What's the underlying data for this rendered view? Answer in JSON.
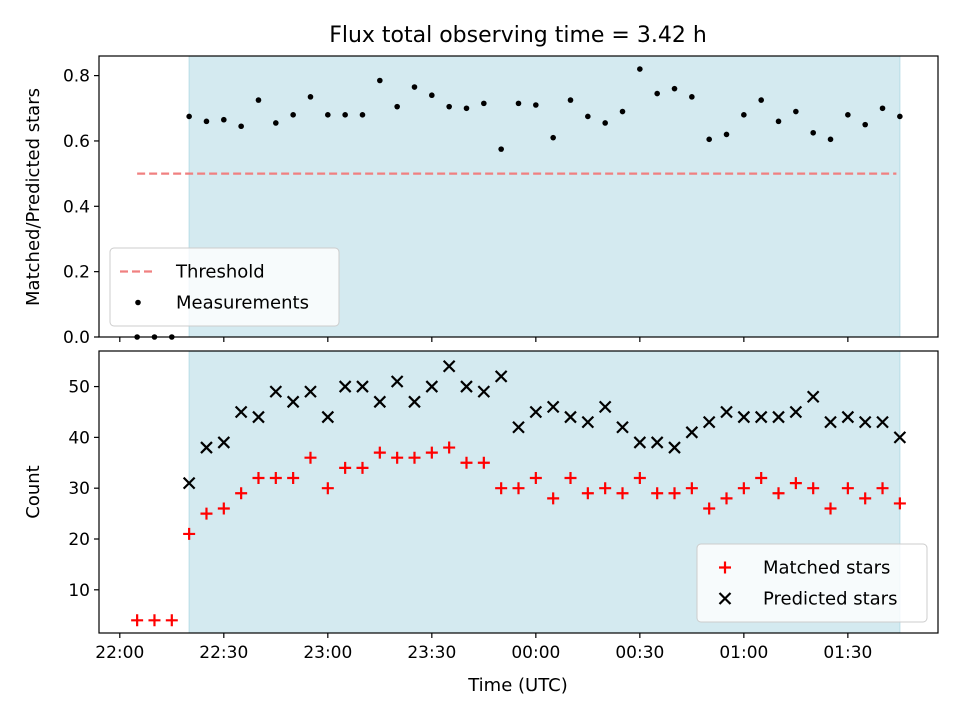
{
  "chart_data": {
    "type": "scatter",
    "title": "Flux total observing time = 3.42 h",
    "xlabel": "Time (UTC)",
    "x_ticks": [
      "22:00",
      "22:30",
      "23:00",
      "23:30",
      "00:00",
      "00:30",
      "01:00",
      "01:30"
    ],
    "x_tick_minutes": [
      0,
      30,
      60,
      90,
      120,
      150,
      180,
      210
    ],
    "xlim_minutes": [
      -6,
      236
    ],
    "highlight_span_minutes": [
      20,
      225
    ],
    "highlight_color": "#d4eaf0",
    "panels": [
      {
        "ylabel": "Matched/Predicted stars",
        "ylim": [
          0,
          0.86
        ],
        "y_ticks": [
          "0.0",
          "0.2",
          "0.4",
          "0.6",
          "0.8"
        ],
        "y_tick_values": [
          0,
          0.2,
          0.4,
          0.6,
          0.8
        ],
        "legend_position": "lower-left",
        "threshold": {
          "name": "Threshold",
          "value": 0.5,
          "x_range": [
            5,
            224
          ],
          "color": "#f08080"
        },
        "series": [
          {
            "name": "Measurements",
            "marker": "dot",
            "color": "#000000",
            "x": [
              5,
              10,
              15,
              20,
              25,
              30,
              35,
              40,
              45,
              50,
              55,
              60,
              65,
              70,
              75,
              80,
              85,
              90,
              95,
              100,
              105,
              110,
              115,
              120,
              125,
              130,
              135,
              140,
              145,
              150,
              155,
              160,
              165,
              170,
              175,
              180,
              185,
              190,
              195,
              200,
              205,
              210,
              215,
              220,
              225
            ],
            "y": [
              0.0,
              0.0,
              0.0,
              0.675,
              0.66,
              0.665,
              0.645,
              0.725,
              0.655,
              0.68,
              0.735,
              0.68,
              0.68,
              0.68,
              0.785,
              0.705,
              0.765,
              0.74,
              0.705,
              0.7,
              0.715,
              0.575,
              0.715,
              0.71,
              0.61,
              0.725,
              0.675,
              0.655,
              0.69,
              0.82,
              0.745,
              0.76,
              0.735,
              0.605,
              0.62,
              0.68,
              0.725,
              0.66,
              0.69,
              0.625,
              0.605,
              0.68,
              0.65,
              0.7,
              0.675
            ]
          }
        ]
      },
      {
        "ylabel": "Count",
        "ylim": [
          1.5,
          57
        ],
        "y_ticks": [
          "10",
          "20",
          "30",
          "40",
          "50"
        ],
        "y_tick_values": [
          10,
          20,
          30,
          40,
          50
        ],
        "legend_position": "lower-right",
        "series": [
          {
            "name": "Matched stars",
            "marker": "plus",
            "color": "#ff0000",
            "x": [
              5,
              10,
              15,
              20,
              25,
              30,
              35,
              40,
              45,
              50,
              55,
              60,
              65,
              70,
              75,
              80,
              85,
              90,
              95,
              100,
              105,
              110,
              115,
              120,
              125,
              130,
              135,
              140,
              145,
              150,
              155,
              160,
              165,
              170,
              175,
              180,
              185,
              190,
              195,
              200,
              205,
              210,
              215,
              220,
              225
            ],
            "y": [
              4,
              4,
              4,
              21,
              25,
              26,
              29,
              32,
              32,
              32,
              36,
              30,
              34,
              34,
              37,
              36,
              36,
              37,
              38,
              35,
              35,
              30,
              30,
              32,
              28,
              32,
              29,
              30,
              29,
              32,
              29,
              29,
              30,
              26,
              28,
              30,
              32,
              29,
              31,
              30,
              26,
              30,
              28,
              30,
              27
            ]
          },
          {
            "name": "Predicted stars",
            "marker": "x",
            "color": "#000000",
            "x": [
              20,
              25,
              30,
              35,
              40,
              45,
              50,
              55,
              60,
              65,
              70,
              75,
              80,
              85,
              90,
              95,
              100,
              105,
              110,
              115,
              120,
              125,
              130,
              135,
              140,
              145,
              150,
              155,
              160,
              165,
              170,
              175,
              180,
              185,
              190,
              195,
              200,
              205,
              210,
              215,
              220,
              225
            ],
            "y": [
              31,
              38,
              39,
              45,
              44,
              49,
              47,
              49,
              44,
              50,
              50,
              47,
              51,
              47,
              50,
              54,
              50,
              49,
              52,
              42,
              45,
              46,
              44,
              43,
              46,
              42,
              39,
              39,
              38,
              41,
              43,
              45,
              44,
              44,
              44,
              45,
              48,
              43,
              44,
              43,
              43,
              40
            ]
          }
        ]
      }
    ]
  }
}
